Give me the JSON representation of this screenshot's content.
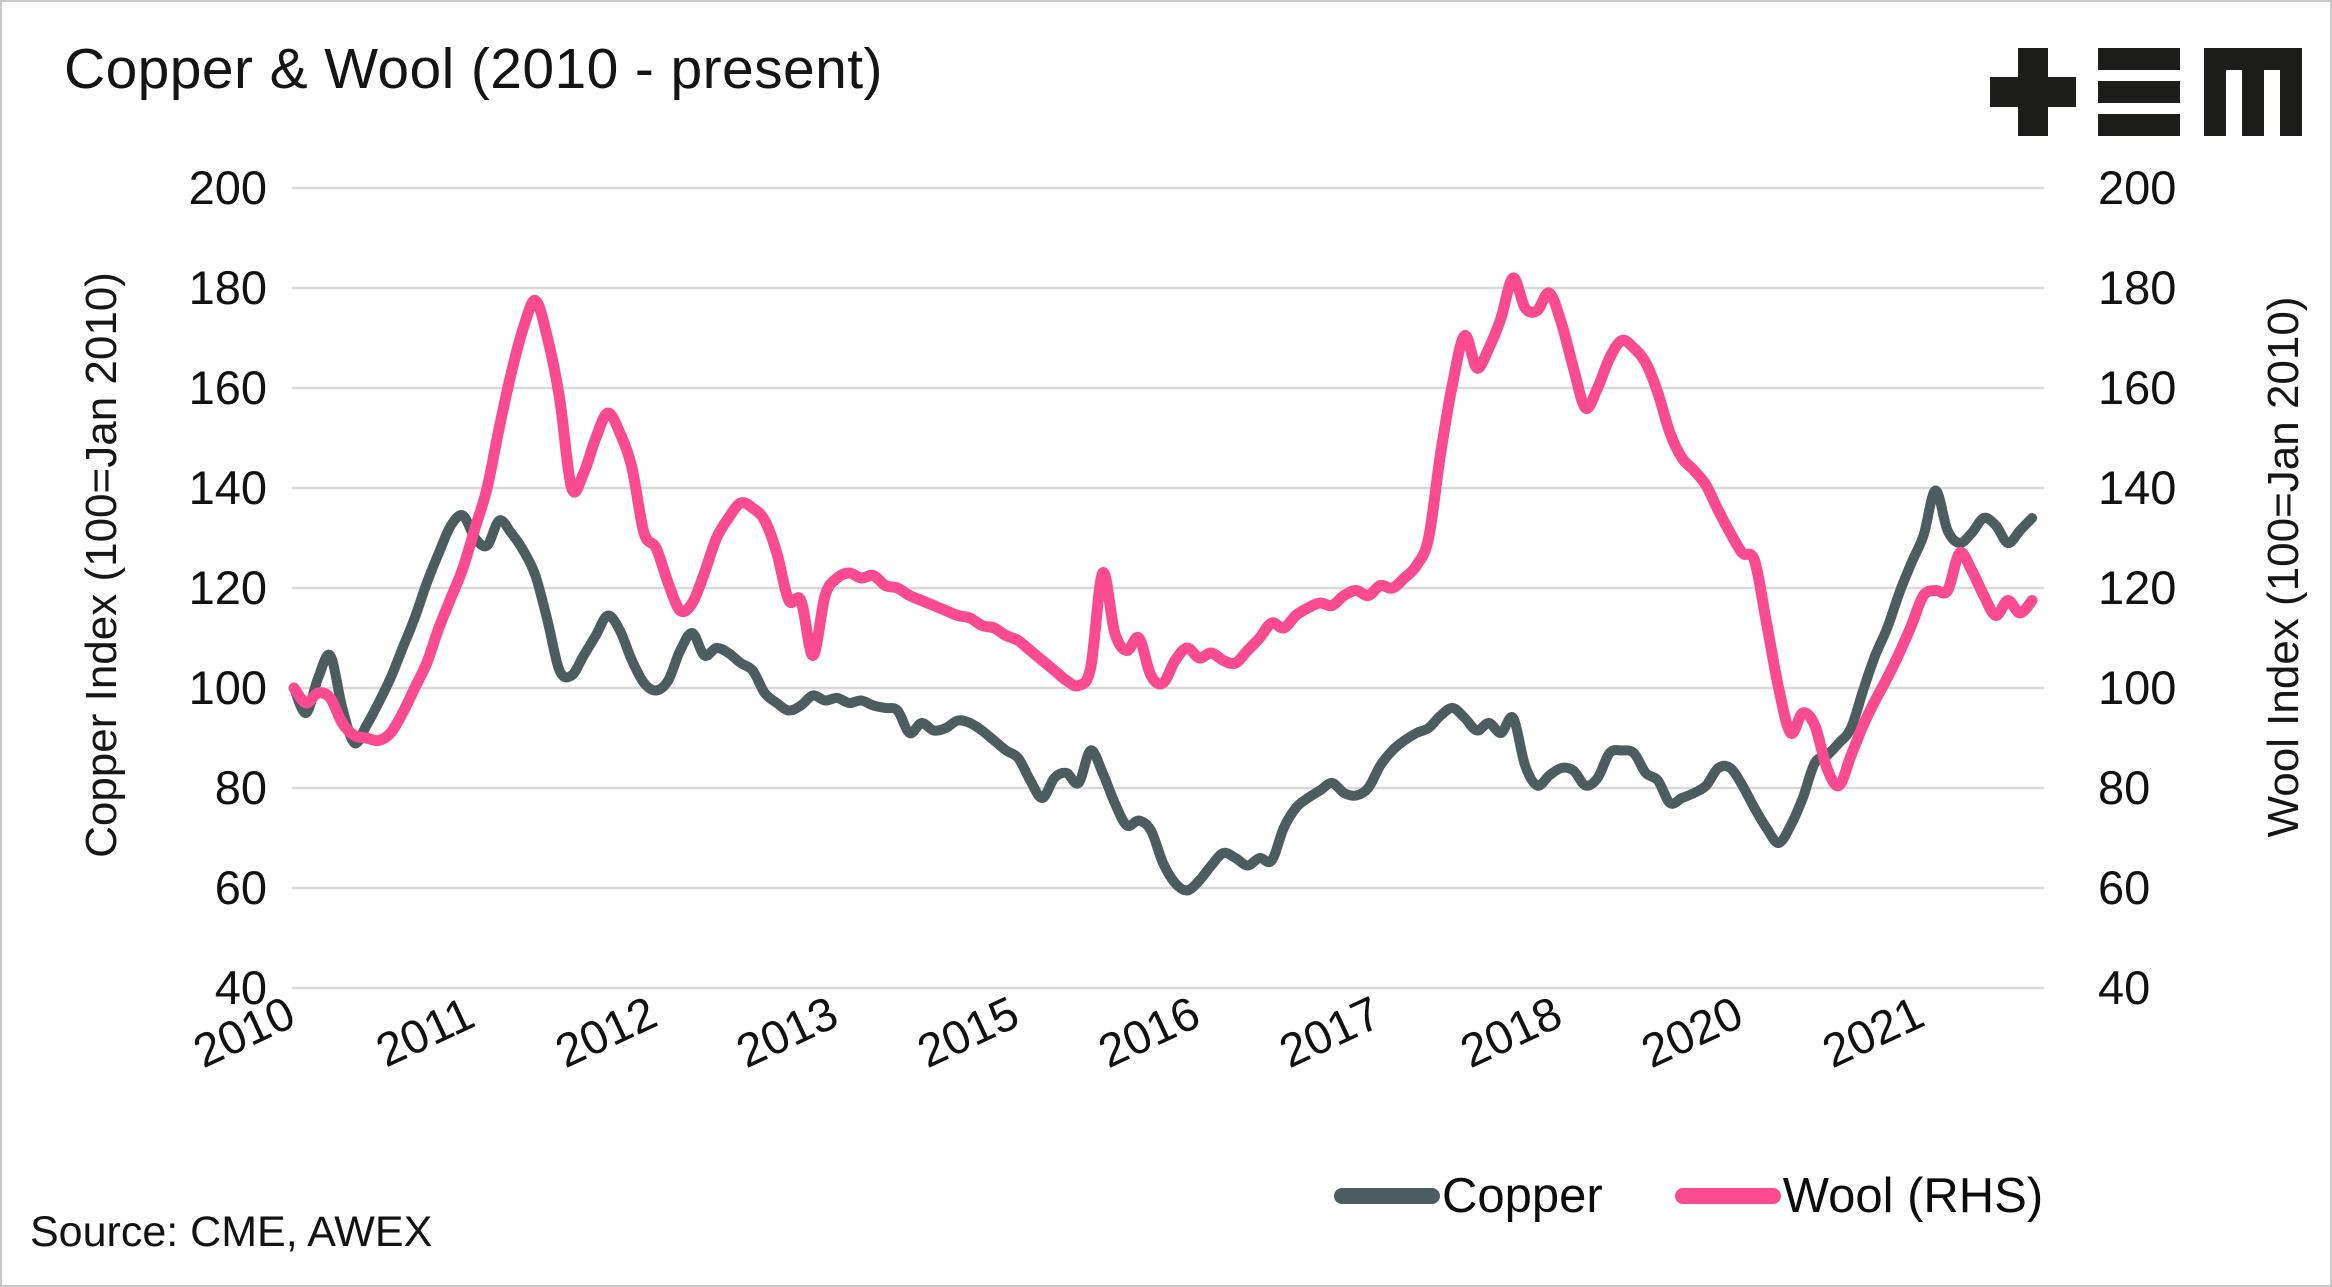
{
  "header": {
    "title": "Copper & Wool (2010 - present)",
    "logo": "tem-logo"
  },
  "footer": {
    "source": "Source: CME, AWEX"
  },
  "chart_data": {
    "type": "line",
    "title": "Copper & Wool (2010 - present)",
    "ylabel_left": "Copper Index (100=Jan 2010)",
    "ylabel_right": "Wool Index (100=Jan 2010)",
    "ylim": [
      40,
      200
    ],
    "y_ticks": [
      200,
      180,
      160,
      140,
      120,
      100,
      80,
      60,
      40
    ],
    "x_tick_labels": [
      "2010",
      "2011",
      "2012",
      "2013",
      "2015",
      "2016",
      "2017",
      "2018",
      "2020",
      "2021"
    ],
    "x_tick_step_months": 15,
    "x": {
      "start": "2010-01",
      "step_months": 1,
      "points": 145
    },
    "grid": "horizontal",
    "gridline_color": "#d9d9d9",
    "legend_position": "bottom-right",
    "series": [
      {
        "name": "Copper",
        "axis": "left",
        "color": "#4d5d5f",
        "stroke_width": 10,
        "values": [
          100,
          95,
          102,
          106.5,
          96,
          89,
          92.5,
          97,
          102,
          108,
          114,
          121,
          127,
          132.5,
          134.5,
          130,
          128.5,
          133.5,
          131,
          127.5,
          122.5,
          113.5,
          103.5,
          102.5,
          106.5,
          110.5,
          114.5,
          111.5,
          105.5,
          101,
          99.5,
          101.5,
          107.5,
          111,
          106.5,
          108,
          107,
          105,
          103.5,
          99,
          97,
          95.5,
          96.5,
          98.5,
          97.5,
          98,
          97,
          97.5,
          96.5,
          96,
          95.5,
          91,
          93,
          91.5,
          92,
          93.5,
          93,
          91.5,
          89.5,
          87.5,
          86,
          81.5,
          78,
          82,
          83,
          81,
          87.5,
          83,
          77,
          72.5,
          73.5,
          71.5,
          65,
          61,
          59.5,
          61.5,
          64.5,
          67,
          66,
          64.5,
          66,
          65.5,
          72,
          76,
          78,
          79.5,
          81,
          79,
          78.5,
          80,
          84.5,
          87.5,
          89.5,
          91,
          92,
          94.5,
          96,
          94,
          91.5,
          93,
          91,
          94,
          84.5,
          80.5,
          82.5,
          84,
          83.5,
          80.5,
          82,
          87,
          87.5,
          87,
          83,
          81.5,
          77,
          78,
          79,
          80.5,
          84,
          84,
          80.5,
          76,
          72,
          69,
          72.5,
          78,
          85,
          86.5,
          89,
          92,
          99.5,
          106.5,
          112,
          119,
          125,
          130.5,
          139.5,
          131.5,
          129,
          131,
          134,
          132.5,
          129,
          131.5,
          134
        ]
      },
      {
        "name": "Wool (RHS)",
        "axis": "right",
        "color": "#fa4a90",
        "stroke_width": 11,
        "values": [
          100,
          97,
          99,
          98,
          93,
          90.5,
          90,
          89.5,
          91,
          95,
          100,
          105,
          112,
          118,
          124,
          132,
          140,
          152,
          163,
          172,
          177.5,
          170,
          158,
          140,
          143,
          150,
          155,
          151,
          144,
          131,
          128,
          121,
          115.5,
          117,
          123,
          130,
          134,
          137,
          136,
          133.5,
          127,
          117.5,
          117.5,
          106.5,
          118.5,
          122,
          123,
          122,
          122.5,
          120.5,
          120,
          118.5,
          117.5,
          116.5,
          115.5,
          114.5,
          114,
          112.5,
          112,
          110.5,
          109.5,
          107.5,
          105.5,
          103.5,
          101.5,
          100.5,
          104,
          123,
          111,
          107.5,
          110,
          102.5,
          101,
          105.5,
          108,
          106,
          107,
          105.5,
          105,
          107.5,
          110,
          113,
          112,
          114.5,
          116,
          117,
          116.5,
          118.5,
          119.5,
          118.5,
          120.5,
          120,
          122,
          124.5,
          130,
          147,
          161,
          170.5,
          164,
          168,
          174,
          182,
          176,
          175.5,
          179,
          173,
          164,
          156,
          160,
          166,
          169.5,
          168,
          165,
          159,
          151,
          146,
          143.5,
          140.5,
          135.5,
          131,
          127,
          125.5,
          113,
          100,
          91,
          95,
          92.5,
          84,
          80.5,
          86.5,
          92.5,
          97.5,
          102,
          107,
          112.5,
          118.5,
          119.5,
          119.5,
          127,
          123.5,
          118.5,
          114.5,
          117.5,
          115,
          117.5
        ]
      }
    ]
  }
}
